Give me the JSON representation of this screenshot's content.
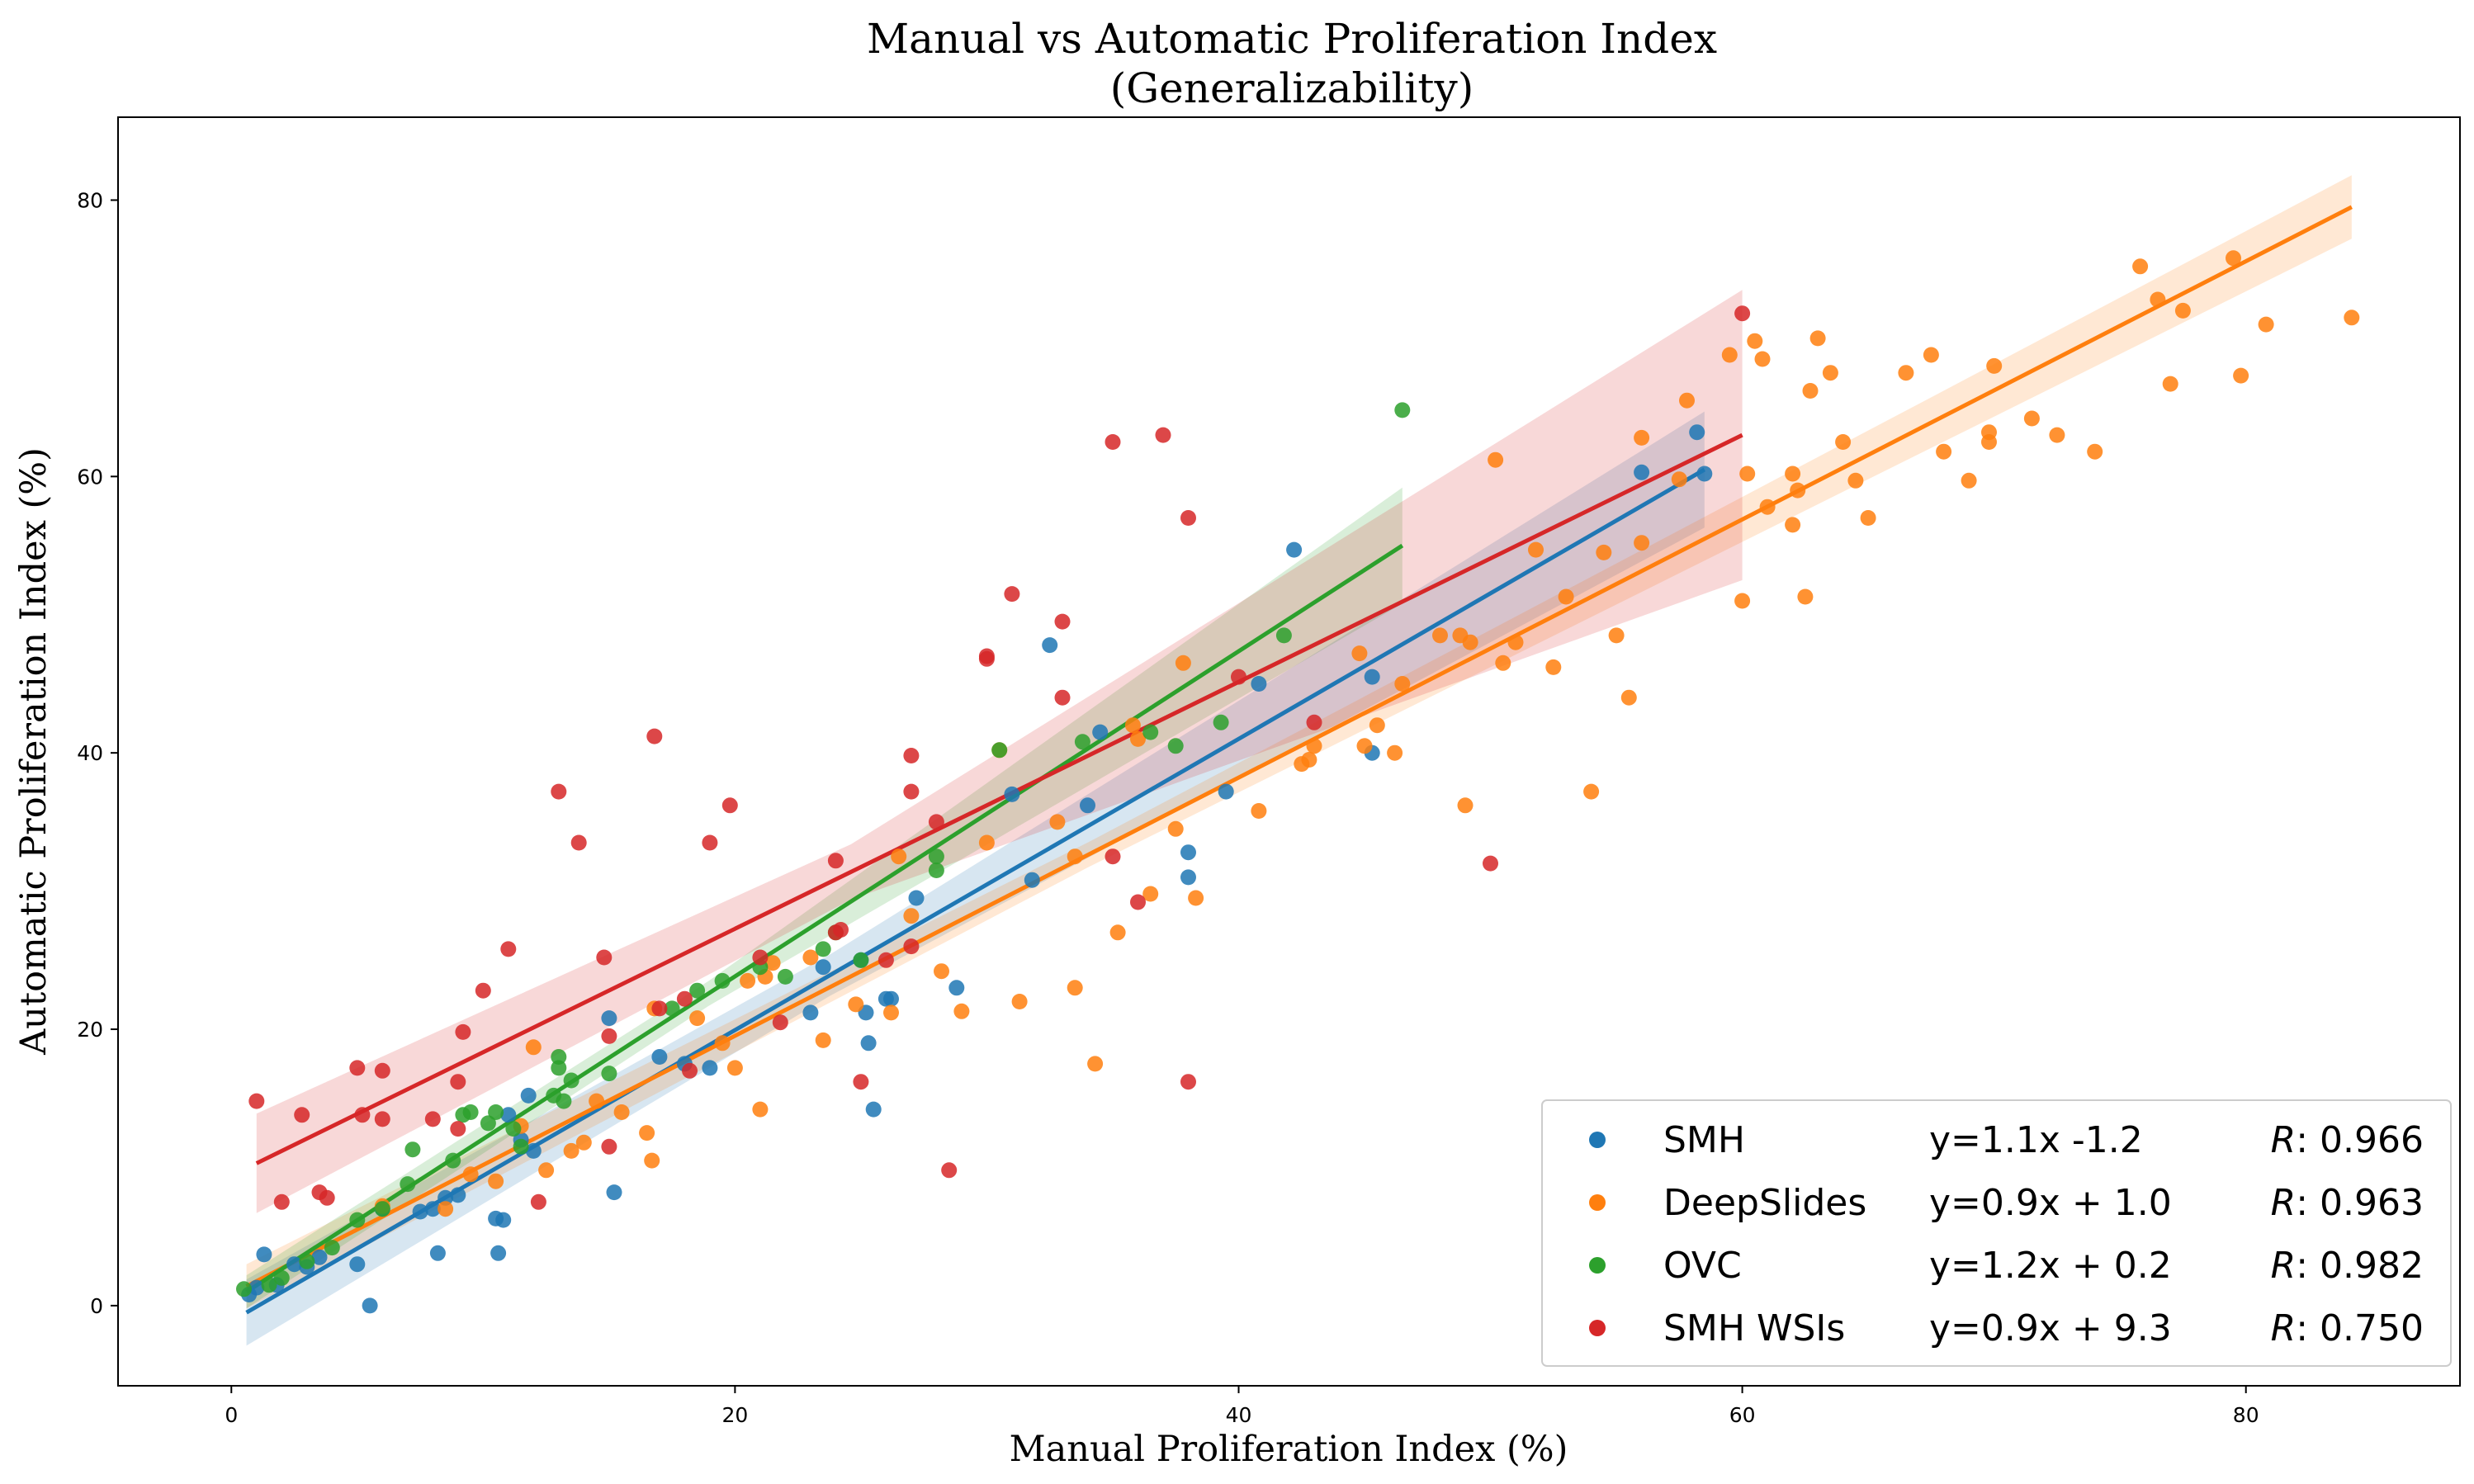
{
  "chart_data": {
    "type": "scatter",
    "title": "Manual vs Automatic Proliferation Index",
    "subtitle": "(Generalizability)",
    "xlabel": "Manual Proliferation Index (%)",
    "ylabel": "Automatic Proliferation Index (%)",
    "xlim": [
      -4.5,
      88.5
    ],
    "ylim": [
      -5.8,
      86.0
    ],
    "xticks": [
      0,
      20,
      40,
      60,
      80
    ],
    "yticks": [
      0,
      20,
      40,
      60,
      80
    ],
    "grid": false,
    "legend_position": "bottom-right",
    "series": [
      {
        "name": "SMH",
        "color": "#1f77b4",
        "equation": "y=1.1x  -1.2",
        "r_label": "R",
        "r_value": ": 0.966",
        "fit_x": [
          0.6,
          58.5
        ],
        "fit_y": [
          -0.5,
          60.5
        ],
        "band_halfwidth": [
          2.4,
          1.5,
          4.2
        ],
        "points": [
          [
            0.7,
            0.8
          ],
          [
            1.0,
            1.3
          ],
          [
            1.3,
            3.7
          ],
          [
            1.8,
            1.5
          ],
          [
            2.5,
            3.0
          ],
          [
            3.0,
            2.8
          ],
          [
            3.5,
            3.5
          ],
          [
            5.0,
            3.0
          ],
          [
            5.5,
            0.0
          ],
          [
            6.0,
            7.0
          ],
          [
            7.5,
            6.8
          ],
          [
            8.0,
            7.0
          ],
          [
            8.2,
            3.8
          ],
          [
            8.5,
            7.8
          ],
          [
            9.0,
            8.0
          ],
          [
            10.5,
            6.3
          ],
          [
            10.6,
            3.8
          ],
          [
            10.8,
            6.2
          ],
          [
            11.0,
            13.8
          ],
          [
            11.5,
            12.0
          ],
          [
            11.8,
            15.2
          ],
          [
            12.0,
            11.2
          ],
          [
            15.0,
            20.8
          ],
          [
            15.2,
            8.2
          ],
          [
            17.0,
            18.0
          ],
          [
            18.0,
            17.5
          ],
          [
            19.0,
            17.2
          ],
          [
            23.0,
            21.2
          ],
          [
            23.5,
            24.5
          ],
          [
            25.0,
            25.0
          ],
          [
            25.2,
            21.2
          ],
          [
            25.3,
            19.0
          ],
          [
            25.5,
            14.2
          ],
          [
            26.0,
            22.2
          ],
          [
            26.2,
            22.2
          ],
          [
            27.2,
            29.5
          ],
          [
            28.8,
            23.0
          ],
          [
            31.0,
            37.0
          ],
          [
            31.8,
            30.8
          ],
          [
            32.5,
            47.8
          ],
          [
            34.0,
            36.2
          ],
          [
            34.5,
            41.5
          ],
          [
            38.0,
            32.8
          ],
          [
            38.0,
            31.0
          ],
          [
            39.5,
            37.2
          ],
          [
            40.8,
            45.0
          ],
          [
            42.2,
            54.7
          ],
          [
            45.3,
            45.5
          ],
          [
            45.3,
            40.0
          ],
          [
            56.0,
            60.3
          ],
          [
            58.2,
            63.2
          ],
          [
            58.5,
            60.2
          ]
        ]
      },
      {
        "name": "DeepSlides",
        "color": "#ff7f0e",
        "equation": "y=0.9x + 1.0",
        "r_label": "R",
        "r_value": ": 0.963",
        "fit_x": [
          0.6,
          84.2
        ],
        "fit_y": [
          1.4,
          79.5
        ],
        "band_halfwidth": [
          1.6,
          0.9,
          2.3
        ],
        "points": [
          [
            6.0,
            7.2
          ],
          [
            8.5,
            7.0
          ],
          [
            9.5,
            9.5
          ],
          [
            10.5,
            9.0
          ],
          [
            11.5,
            13.0
          ],
          [
            12.0,
            18.7
          ],
          [
            12.5,
            9.8
          ],
          [
            13.5,
            11.2
          ],
          [
            14.0,
            11.8
          ],
          [
            14.5,
            14.8
          ],
          [
            15.5,
            14.0
          ],
          [
            16.5,
            12.5
          ],
          [
            16.7,
            10.5
          ],
          [
            16.8,
            21.5
          ],
          [
            18.5,
            20.8
          ],
          [
            19.5,
            19.0
          ],
          [
            20.0,
            17.2
          ],
          [
            20.5,
            23.5
          ],
          [
            21.0,
            14.2
          ],
          [
            21.2,
            23.8
          ],
          [
            21.5,
            24.8
          ],
          [
            23.0,
            25.2
          ],
          [
            23.5,
            19.2
          ],
          [
            24.8,
            21.8
          ],
          [
            26.2,
            21.2
          ],
          [
            26.5,
            32.5
          ],
          [
            27.0,
            28.2
          ],
          [
            28.2,
            24.2
          ],
          [
            29.0,
            21.3
          ],
          [
            30.0,
            33.5
          ],
          [
            30.5,
            40.2
          ],
          [
            31.3,
            22.0
          ],
          [
            32.8,
            35.0
          ],
          [
            33.5,
            23.0
          ],
          [
            33.5,
            32.5
          ],
          [
            34.3,
            17.5
          ],
          [
            35.2,
            27.0
          ],
          [
            35.8,
            42.0
          ],
          [
            36.0,
            41.0
          ],
          [
            36.5,
            29.8
          ],
          [
            37.5,
            34.5
          ],
          [
            37.8,
            46.5
          ],
          [
            38.3,
            29.5
          ],
          [
            40.8,
            35.8
          ],
          [
            42.8,
            39.5
          ],
          [
            42.5,
            39.2
          ],
          [
            43.0,
            40.5
          ],
          [
            44.8,
            47.2
          ],
          [
            45.0,
            40.5
          ],
          [
            45.5,
            42.0
          ],
          [
            46.2,
            40.0
          ],
          [
            46.5,
            45.0
          ],
          [
            48.0,
            48.5
          ],
          [
            48.8,
            48.5
          ],
          [
            49.0,
            36.2
          ],
          [
            49.2,
            48.0
          ],
          [
            50.2,
            61.2
          ],
          [
            50.5,
            46.5
          ],
          [
            51.0,
            48.0
          ],
          [
            51.8,
            54.7
          ],
          [
            52.5,
            46.2
          ],
          [
            53.0,
            51.3
          ],
          [
            54.0,
            37.2
          ],
          [
            54.5,
            54.5
          ],
          [
            55.0,
            48.5
          ],
          [
            55.5,
            44.0
          ],
          [
            56.0,
            55.2
          ],
          [
            56.0,
            62.8
          ],
          [
            57.5,
            59.8
          ],
          [
            57.8,
            65.5
          ],
          [
            59.5,
            68.8
          ],
          [
            60.0,
            51.0
          ],
          [
            60.2,
            60.2
          ],
          [
            60.5,
            69.8
          ],
          [
            60.8,
            68.5
          ],
          [
            61.0,
            57.8
          ],
          [
            62.0,
            60.2
          ],
          [
            62.2,
            59.0
          ],
          [
            62.0,
            56.5
          ],
          [
            62.5,
            51.3
          ],
          [
            62.7,
            66.2
          ],
          [
            63.0,
            70.0
          ],
          [
            63.5,
            67.5
          ],
          [
            64.0,
            62.5
          ],
          [
            64.5,
            59.7
          ],
          [
            65.0,
            57.0
          ],
          [
            66.5,
            67.5
          ],
          [
            67.5,
            68.8
          ],
          [
            68.0,
            61.8
          ],
          [
            69.0,
            59.7
          ],
          [
            69.8,
            62.5
          ],
          [
            69.8,
            63.2
          ],
          [
            70.0,
            68.0
          ],
          [
            71.5,
            64.2
          ],
          [
            72.5,
            63.0
          ],
          [
            74.0,
            61.8
          ],
          [
            75.8,
            75.2
          ],
          [
            76.5,
            72.8
          ],
          [
            77.0,
            66.7
          ],
          [
            77.5,
            72.0
          ],
          [
            79.8,
            67.3
          ],
          [
            79.5,
            75.8
          ],
          [
            80.8,
            71.0
          ],
          [
            84.2,
            71.5
          ]
        ]
      },
      {
        "name": "OVC",
        "color": "#2ca02c",
        "equation": "y=1.2x + 0.2",
        "r_label": "R",
        "r_value": ": 0.982",
        "fit_x": [
          0.6,
          46.5
        ],
        "fit_y": [
          1.0,
          55.0
        ],
        "band_halfwidth": [
          1.2,
          0.9,
          4.2
        ],
        "points": [
          [
            0.5,
            1.2
          ],
          [
            1.5,
            1.5
          ],
          [
            2.0,
            2.0
          ],
          [
            3.0,
            3.2
          ],
          [
            4.0,
            4.2
          ],
          [
            5.0,
            6.2
          ],
          [
            6.0,
            7.0
          ],
          [
            7.0,
            8.8
          ],
          [
            7.2,
            11.3
          ],
          [
            8.8,
            10.5
          ],
          [
            9.2,
            13.8
          ],
          [
            9.5,
            14.0
          ],
          [
            10.2,
            13.2
          ],
          [
            10.5,
            14.0
          ],
          [
            11.2,
            12.8
          ],
          [
            11.5,
            11.5
          ],
          [
            12.8,
            15.2
          ],
          [
            13.0,
            17.2
          ],
          [
            13.0,
            18.0
          ],
          [
            13.2,
            14.8
          ],
          [
            13.5,
            16.3
          ],
          [
            15.0,
            16.8
          ],
          [
            17.5,
            21.5
          ],
          [
            18.5,
            22.8
          ],
          [
            19.5,
            23.5
          ],
          [
            21.0,
            24.5
          ],
          [
            22.0,
            23.8
          ],
          [
            23.5,
            25.8
          ],
          [
            24.0,
            27.0
          ],
          [
            25.0,
            25.0
          ],
          [
            28.0,
            32.5
          ],
          [
            28.0,
            31.5
          ],
          [
            30.5,
            40.2
          ],
          [
            33.8,
            40.8
          ],
          [
            36.5,
            41.5
          ],
          [
            37.5,
            40.5
          ],
          [
            39.3,
            42.2
          ],
          [
            41.8,
            48.5
          ],
          [
            46.5,
            64.8
          ]
        ]
      },
      {
        "name": "SMH WSIs",
        "color": "#d62728",
        "equation": "y=0.9x + 9.3",
        "r_label": "R",
        "r_value": ": 0.750",
        "fit_x": [
          1.0,
          60.0
        ],
        "fit_y": [
          10.3,
          63.0
        ],
        "band_halfwidth": [
          3.6,
          2.0,
          10.5
        ],
        "points": [
          [
            1.0,
            14.8
          ],
          [
            2.0,
            7.5
          ],
          [
            2.8,
            13.8
          ],
          [
            3.5,
            8.2
          ],
          [
            3.8,
            7.8
          ],
          [
            5.0,
            17.2
          ],
          [
            5.2,
            13.8
          ],
          [
            6.0,
            17.0
          ],
          [
            6.0,
            13.5
          ],
          [
            8.0,
            13.5
          ],
          [
            9.0,
            16.2
          ],
          [
            9.0,
            12.8
          ],
          [
            9.2,
            19.8
          ],
          [
            10.0,
            22.8
          ],
          [
            11.0,
            25.8
          ],
          [
            12.2,
            7.5
          ],
          [
            13.0,
            37.2
          ],
          [
            13.8,
            33.5
          ],
          [
            14.8,
            25.2
          ],
          [
            15.0,
            19.5
          ],
          [
            15.0,
            11.5
          ],
          [
            16.8,
            41.2
          ],
          [
            17.0,
            21.5
          ],
          [
            18.0,
            22.2
          ],
          [
            18.2,
            17.0
          ],
          [
            19.0,
            33.5
          ],
          [
            19.8,
            36.2
          ],
          [
            21.0,
            25.2
          ],
          [
            21.8,
            20.5
          ],
          [
            24.0,
            32.2
          ],
          [
            24.0,
            27.0
          ],
          [
            24.2,
            27.2
          ],
          [
            25.0,
            16.2
          ],
          [
            26.0,
            25.0
          ],
          [
            27.0,
            39.8
          ],
          [
            27.0,
            37.2
          ],
          [
            27.0,
            26.0
          ],
          [
            28.0,
            35.0
          ],
          [
            28.5,
            9.8
          ],
          [
            30.0,
            47.0
          ],
          [
            30.0,
            46.8
          ],
          [
            31.0,
            51.5
          ],
          [
            33.0,
            49.5
          ],
          [
            33.0,
            44.0
          ],
          [
            35.0,
            62.5
          ],
          [
            35.0,
            32.5
          ],
          [
            36.0,
            29.2
          ],
          [
            37.0,
            63.0
          ],
          [
            38.0,
            57.0
          ],
          [
            38.0,
            16.2
          ],
          [
            40.0,
            45.5
          ],
          [
            43.0,
            42.2
          ],
          [
            50.0,
            32.0
          ],
          [
            60.0,
            71.8
          ]
        ]
      }
    ]
  }
}
